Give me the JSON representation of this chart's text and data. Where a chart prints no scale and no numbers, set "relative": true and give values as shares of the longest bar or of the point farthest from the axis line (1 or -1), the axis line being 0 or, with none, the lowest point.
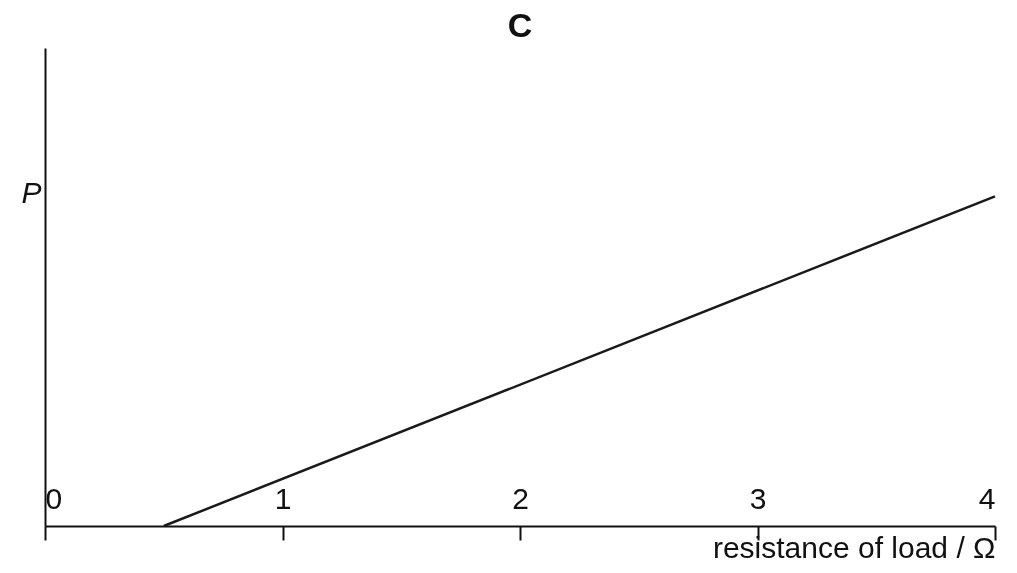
{
  "chart_data": {
    "type": "line",
    "title": "C",
    "ylabel": "P",
    "xlabel": "resistance of load / Ω",
    "relative": true,
    "series": [
      {
        "color": "#1a1a1a",
        "x": [
          0.5,
          4
        ],
        "values": [
          0,
          1
        ]
      }
    ],
    "xlim": [
      0,
      4
    ],
    "xticks": [
      0,
      1,
      2,
      3,
      4
    ],
    "tick_labels": "x",
    "grid": false,
    "legend": false,
    "marker": "none",
    "line_style": "solid"
  }
}
